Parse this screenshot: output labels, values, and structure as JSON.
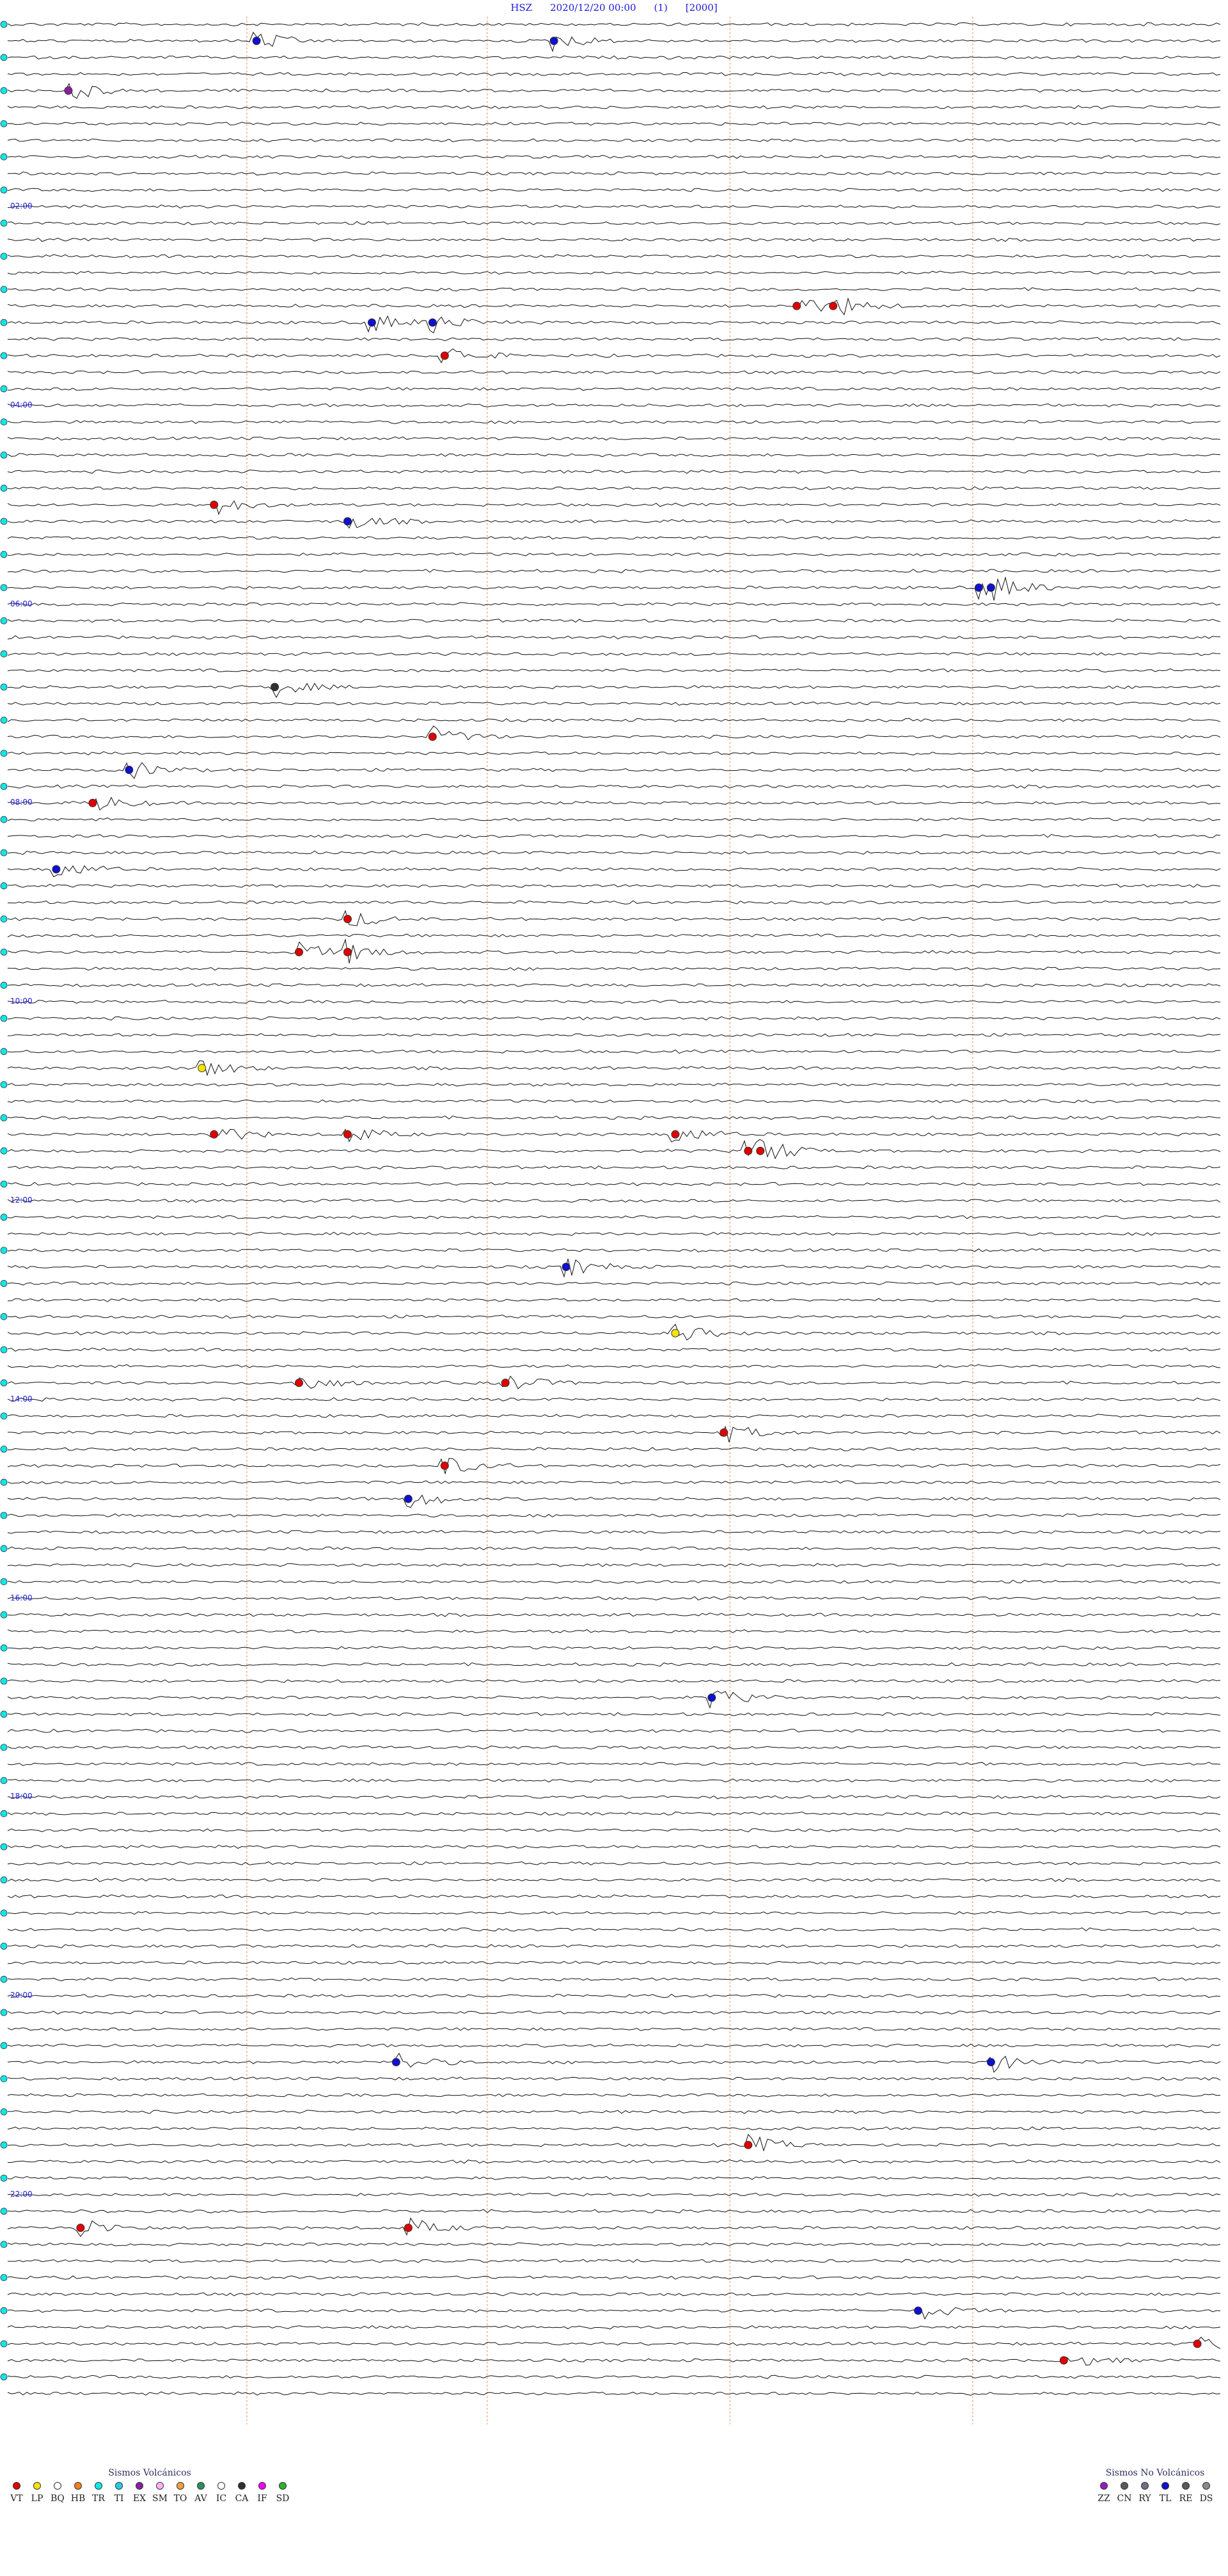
{
  "header": {
    "station": "HSZ",
    "datetime": "2020/12/20 00:00",
    "index": "(1)",
    "code": "[2000]"
  },
  "chart_data": {
    "type": "helicorder",
    "rows": 144,
    "time_labels": [
      "02:00",
      "04:00",
      "06:00",
      "08:00",
      "10:00",
      "12:00",
      "14:00",
      "16:00",
      "18:00",
      "20:00",
      "22:00"
    ],
    "palette": {
      "VT": "#e00000",
      "LP": "#f5e400",
      "BQ": "#ffffff",
      "HB": "#f08020",
      "TR": "#10e8e8",
      "TI": "#20d0e0",
      "EX": "#8a1e9e",
      "SM": "#ffb0ff",
      "TO": "#f0a040",
      "AV": "#2a9060",
      "IC": "#ffffff",
      "CA": "#303030",
      "IF": "#ff00ff",
      "SD": "#30b030",
      "ZZ": "#9020c0",
      "CN": "#5a5a5a",
      "RY": "#7a6a8a",
      "TL": "#1010d0",
      "RE": "#5a5a5a",
      "DS": "#8a8a8a"
    },
    "events": [
      {
        "row": 1,
        "x": 0.205,
        "c": "TL"
      },
      {
        "row": 1,
        "x": 0.45,
        "c": "TL"
      },
      {
        "row": 4,
        "x": 0.05,
        "c": "EX"
      },
      {
        "row": 17,
        "x": 0.65,
        "c": "VT"
      },
      {
        "row": 17,
        "x": 0.68,
        "c": "VT"
      },
      {
        "row": 18,
        "x": 0.3,
        "c": "TL"
      },
      {
        "row": 18,
        "x": 0.35,
        "c": "TL"
      },
      {
        "row": 20,
        "x": 0.36,
        "c": "VT"
      },
      {
        "row": 29,
        "x": 0.17,
        "c": "VT"
      },
      {
        "row": 30,
        "x": 0.28,
        "c": "TL"
      },
      {
        "row": 34,
        "x": 0.8,
        "c": "TL"
      },
      {
        "row": 34,
        "x": 0.81,
        "c": "TL"
      },
      {
        "row": 40,
        "x": 0.22,
        "c": "CA"
      },
      {
        "row": 43,
        "x": 0.35,
        "c": "VT"
      },
      {
        "row": 45,
        "x": 0.1,
        "c": "TL"
      },
      {
        "row": 47,
        "x": 0.07,
        "c": "VT"
      },
      {
        "row": 51,
        "x": 0.04,
        "c": "TL"
      },
      {
        "row": 54,
        "x": 0.28,
        "c": "VT"
      },
      {
        "row": 56,
        "x": 0.28,
        "c": "VT"
      },
      {
        "row": 56,
        "x": 0.24,
        "c": "VT"
      },
      {
        "row": 63,
        "x": 0.16,
        "c": "LP"
      },
      {
        "row": 67,
        "x": 0.17,
        "c": "VT"
      },
      {
        "row": 67,
        "x": 0.28,
        "c": "VT"
      },
      {
        "row": 67,
        "x": 0.55,
        "c": "VT"
      },
      {
        "row": 68,
        "x": 0.61,
        "c": "VT"
      },
      {
        "row": 68,
        "x": 0.62,
        "c": "VT"
      },
      {
        "row": 75,
        "x": 0.46,
        "c": "TL"
      },
      {
        "row": 79,
        "x": 0.55,
        "c": "LP"
      },
      {
        "row": 82,
        "x": 0.24,
        "c": "VT"
      },
      {
        "row": 82,
        "x": 0.41,
        "c": "VT"
      },
      {
        "row": 85,
        "x": 0.59,
        "c": "VT"
      },
      {
        "row": 87,
        "x": 0.36,
        "c": "VT"
      },
      {
        "row": 89,
        "x": 0.33,
        "c": "TL"
      },
      {
        "row": 101,
        "x": 0.58,
        "c": "TL"
      },
      {
        "row": 123,
        "x": 0.32,
        "c": "TL"
      },
      {
        "row": 123,
        "x": 0.81,
        "c": "TL"
      },
      {
        "row": 128,
        "x": 0.61,
        "c": "VT"
      },
      {
        "row": 133,
        "x": 0.06,
        "c": "VT"
      },
      {
        "row": 133,
        "x": 0.33,
        "c": "VT"
      },
      {
        "row": 138,
        "x": 0.75,
        "c": "TL"
      },
      {
        "row": 140,
        "x": 0.98,
        "c": "VT"
      },
      {
        "row": 141,
        "x": 0.87,
        "c": "VT"
      }
    ]
  },
  "legend_volcanic": {
    "title": "Sismos Volcánicos",
    "items": [
      {
        "code": "VT",
        "color": "#e00000"
      },
      {
        "code": "LP",
        "color": "#f5e400"
      },
      {
        "code": "BQ",
        "color": "#ffffff"
      },
      {
        "code": "HB",
        "color": "#f08020"
      },
      {
        "code": "TR",
        "color": "#10e8e8"
      },
      {
        "code": "TI",
        "color": "#20d0e0"
      },
      {
        "code": "EX",
        "color": "#8a1e9e"
      },
      {
        "code": "SM",
        "color": "#ffb0ff"
      },
      {
        "code": "TO",
        "color": "#f0a040"
      },
      {
        "code": "AV",
        "color": "#2a9060"
      },
      {
        "code": "IC",
        "color": "#ffffff"
      },
      {
        "code": "CA",
        "color": "#303030"
      },
      {
        "code": "IF",
        "color": "#ff00ff"
      },
      {
        "code": "SD",
        "color": "#30b030"
      }
    ]
  },
  "legend_nonvolcanic": {
    "title": "Sismos No Volcánicos",
    "items": [
      {
        "code": "ZZ",
        "color": "#9020c0"
      },
      {
        "code": "CN",
        "color": "#5a5a5a"
      },
      {
        "code": "RY",
        "color": "#7a6a8a"
      },
      {
        "code": "TL",
        "color": "#1010d0"
      },
      {
        "code": "RE",
        "color": "#5a5a5a"
      },
      {
        "code": "DS",
        "color": "#8a8a8a"
      }
    ]
  }
}
